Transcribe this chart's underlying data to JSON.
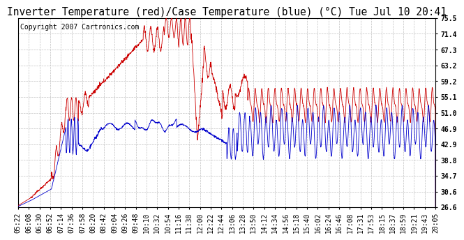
{
  "title": "Inverter Temperature (red)/Case Temperature (blue) (°C) Tue Jul 10 20:41",
  "copyright": "Copyright 2007 Cartronics.com",
  "yticks": [
    26.6,
    30.6,
    34.7,
    38.8,
    42.9,
    46.9,
    51.0,
    55.1,
    59.2,
    63.2,
    67.3,
    71.4,
    75.5
  ],
  "ylim": [
    26.6,
    75.5
  ],
  "xtick_labels": [
    "05:22",
    "06:08",
    "06:30",
    "06:52",
    "07:14",
    "07:36",
    "07:58",
    "08:20",
    "08:42",
    "09:04",
    "09:26",
    "09:48",
    "10:10",
    "10:32",
    "10:54",
    "11:16",
    "11:38",
    "12:00",
    "12:22",
    "12:44",
    "13:06",
    "13:28",
    "13:50",
    "14:12",
    "14:34",
    "14:56",
    "15:18",
    "15:40",
    "16:02",
    "16:24",
    "16:46",
    "17:08",
    "17:31",
    "17:53",
    "18:15",
    "18:37",
    "18:59",
    "19:21",
    "19:43",
    "20:05"
  ],
  "bg_color": "#ffffff",
  "grid_color": "#c0c0c0",
  "red_color": "#cc0000",
  "blue_color": "#0000cc",
  "title_fontsize": 10.5,
  "copyright_fontsize": 7,
  "tick_fontsize": 7
}
